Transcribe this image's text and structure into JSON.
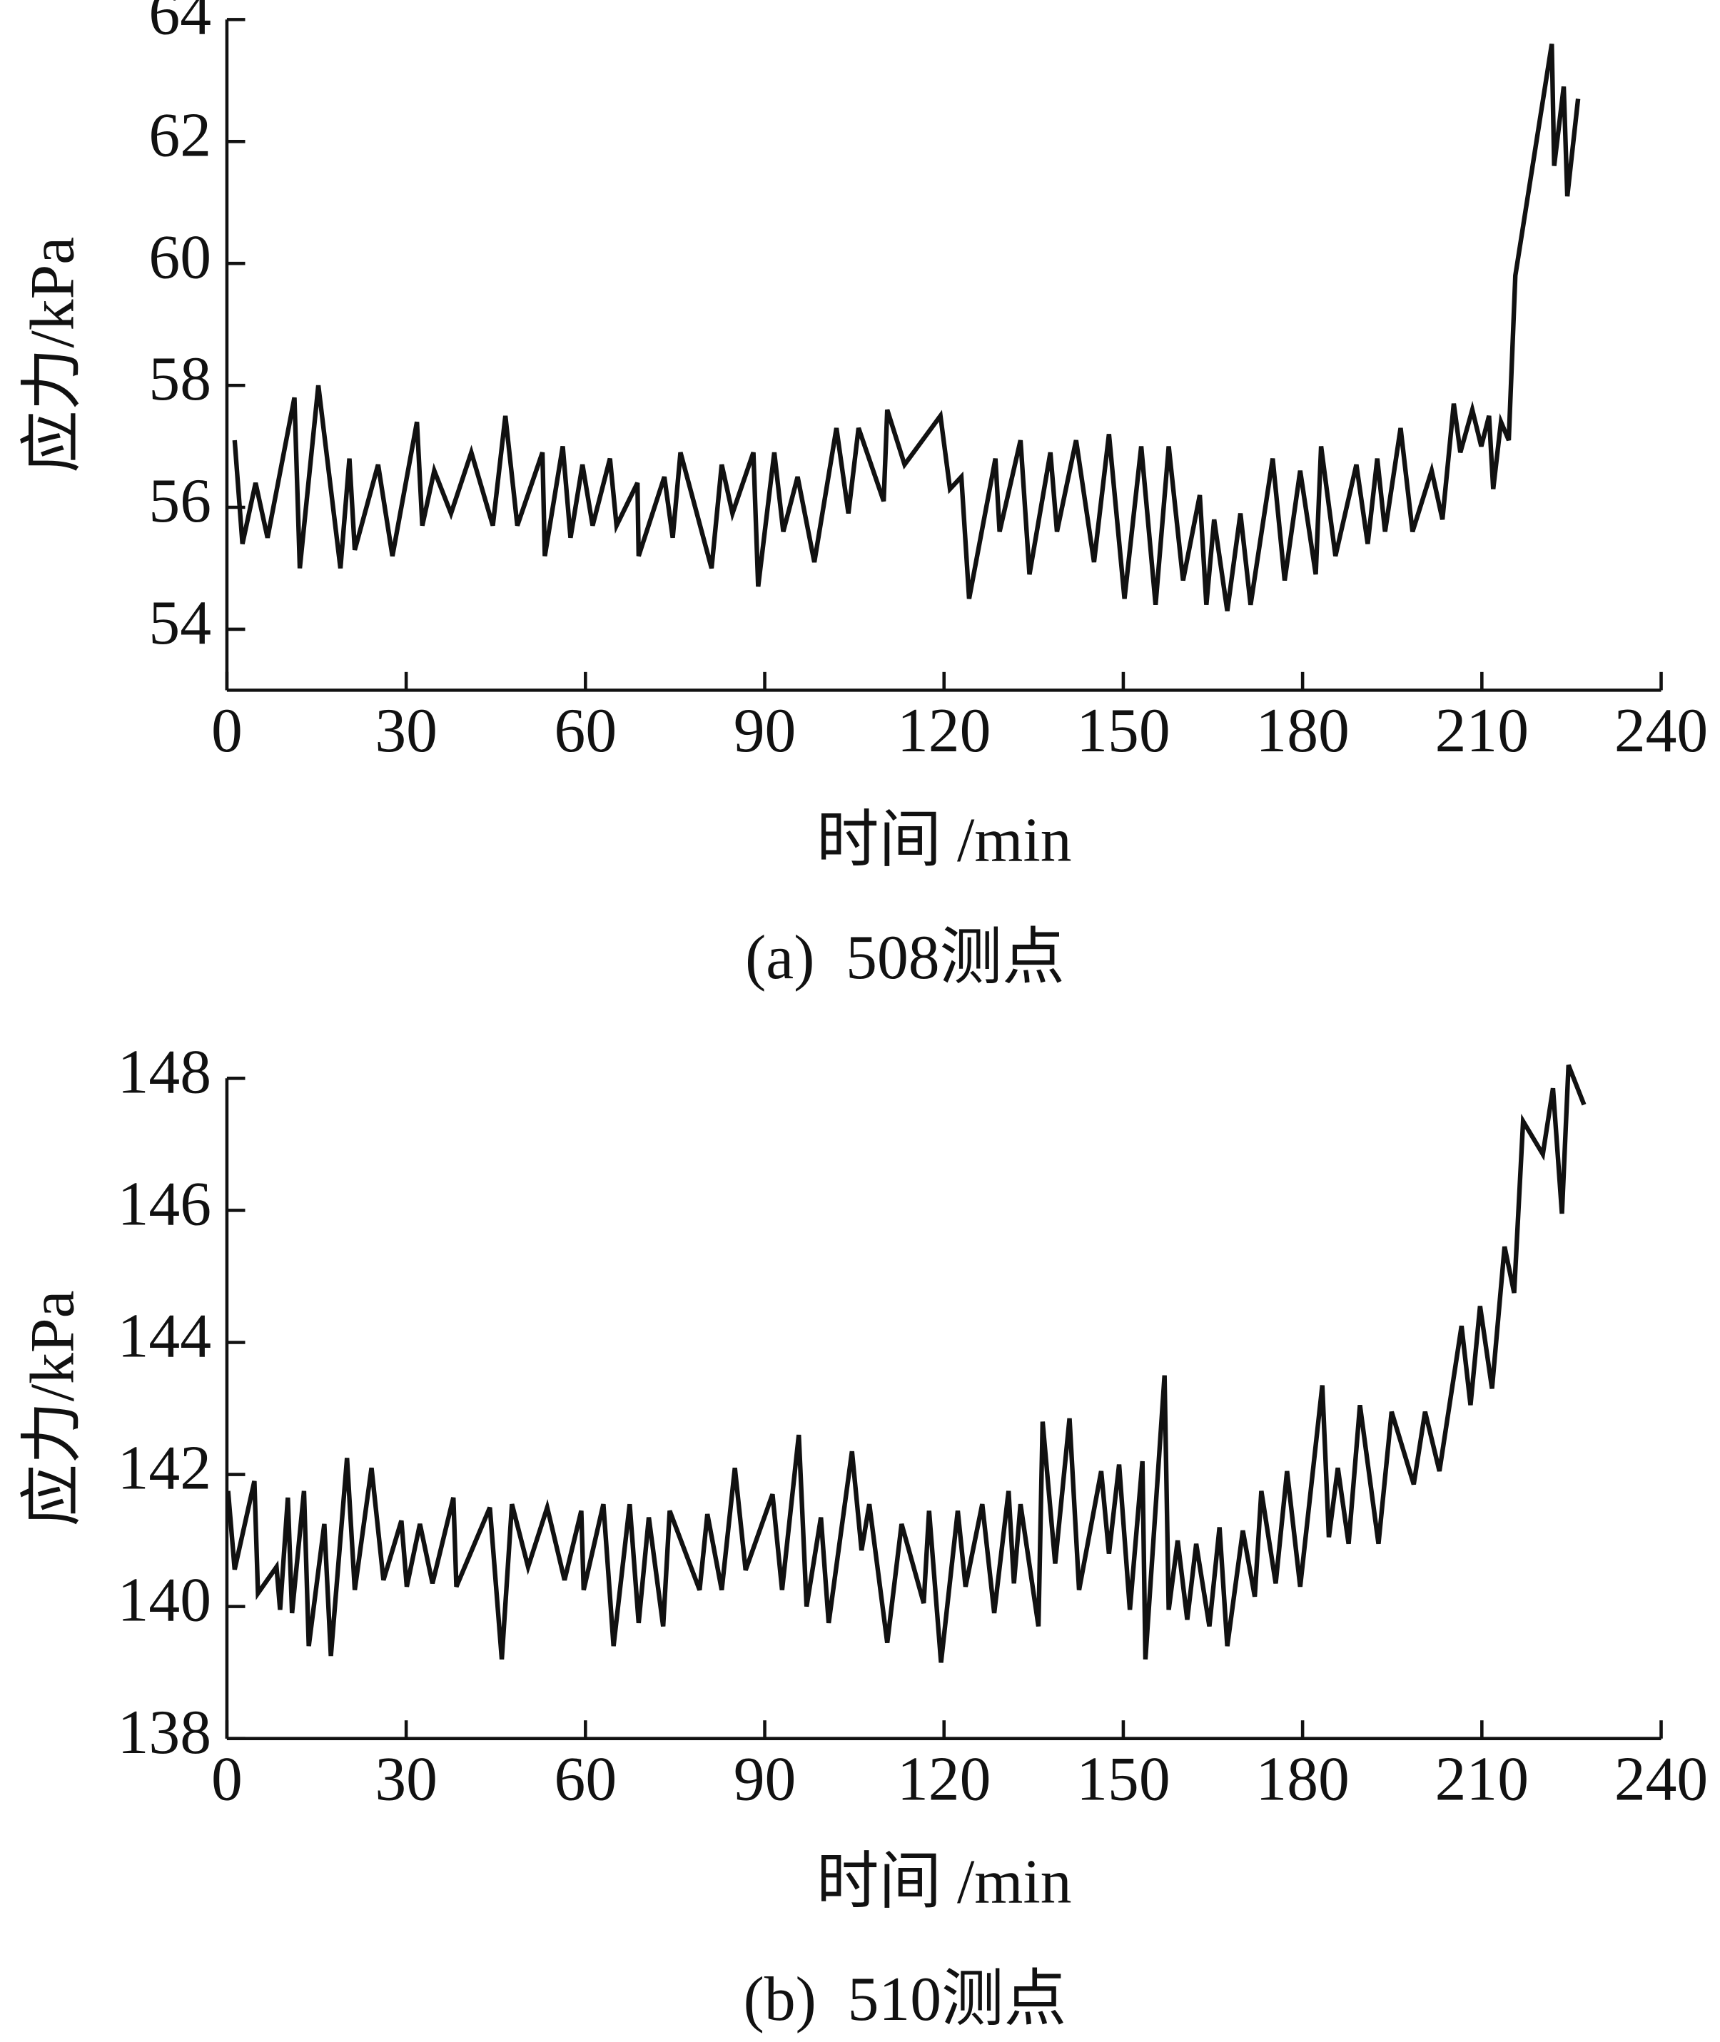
{
  "chart_data": [
    {
      "type": "line",
      "y_label": "应力/kPa",
      "x_label": "时间 /min",
      "caption": "(a)  508测点",
      "xlim": [
        0,
        240
      ],
      "xticks": [
        0,
        30,
        60,
        90,
        120,
        150,
        180,
        210,
        240
      ],
      "ylim": [
        53,
        64
      ],
      "yticks": [
        54,
        56,
        58,
        60,
        62,
        64
      ],
      "series": [
        {
          "color": "#111111",
          "x": [
            1.3,
            2.6,
            4.8,
            6.8,
            11.3,
            12.2,
            15.3,
            19.0,
            20.5,
            21.4,
            25.3,
            27.7,
            31.8,
            32.7,
            34.7,
            37.5,
            40.9,
            44.5,
            46.6,
            48.6,
            52.8,
            53.2,
            56.2,
            57.5,
            59.5,
            61.2,
            64.1,
            65.2,
            68.7,
            68.9,
            73.2,
            74.6,
            75.9,
            81.1,
            82.8,
            84.6,
            88.1,
            88.9,
            91.6,
            93.1,
            95.5,
            98.3,
            102.0,
            104.0,
            105.7,
            109.9,
            110.5,
            113.4,
            119.4,
            121.0,
            122.9,
            124.2,
            128.6,
            129.3,
            132.8,
            134.3,
            137.8,
            138.9,
            142.1,
            145.1,
            147.6,
            150.2,
            153.0,
            155.4,
            157.6,
            160.0,
            162.8,
            163.9,
            165.2,
            167.4,
            169.6,
            171.3,
            175.0,
            177.0,
            179.6,
            182.2,
            183.1,
            185.5,
            189.0,
            190.9,
            192.5,
            193.8,
            196.4,
            198.4,
            201.6,
            203.4,
            205.3,
            206.4,
            208.4,
            209.9,
            211.2,
            211.9,
            213.2,
            214.5,
            215.6,
            221.7,
            222.1,
            223.7,
            224.3,
            226.1
          ],
          "values": [
            57.1,
            55.4,
            56.4,
            55.5,
            57.8,
            55.0,
            58.0,
            55.0,
            56.8,
            55.3,
            56.7,
            55.2,
            57.4,
            55.7,
            56.6,
            55.9,
            56.9,
            55.7,
            57.5,
            55.7,
            56.9,
            55.2,
            57.0,
            55.5,
            56.7,
            55.7,
            56.8,
            55.7,
            56.4,
            55.2,
            56.5,
            55.5,
            56.9,
            55.0,
            56.7,
            55.9,
            56.9,
            54.7,
            56.9,
            55.6,
            56.5,
            55.1,
            57.3,
            55.9,
            57.3,
            56.1,
            57.6,
            56.7,
            57.5,
            56.3,
            56.5,
            54.5,
            56.8,
            55.6,
            57.1,
            54.9,
            56.9,
            55.6,
            57.1,
            55.1,
            57.2,
            54.5,
            57.0,
            54.4,
            57.0,
            54.8,
            56.2,
            54.4,
            55.8,
            54.3,
            55.9,
            54.4,
            56.8,
            54.8,
            56.6,
            54.9,
            57.0,
            55.2,
            56.7,
            55.4,
            56.8,
            55.6,
            57.3,
            55.6,
            56.6,
            55.8,
            57.7,
            56.9,
            57.6,
            57.0,
            57.5,
            56.3,
            57.4,
            57.1,
            59.8,
            63.6,
            61.6,
            62.9,
            61.1,
            62.7
          ]
        }
      ]
    },
    {
      "type": "line",
      "y_label": "应力/kPa",
      "x_label": "时间 /min",
      "caption": "(b)  510测点",
      "xlim": [
        0,
        240
      ],
      "xticks": [
        0,
        30,
        60,
        90,
        120,
        150,
        180,
        210,
        240
      ],
      "ylim": [
        138,
        148
      ],
      "yticks": [
        138,
        140,
        142,
        144,
        146,
        148
      ],
      "series": [
        {
          "color": "#111111",
          "x": [
            0.2,
            1.3,
            4.6,
            5.2,
            8.3,
            8.9,
            10.2,
            10.9,
            12.9,
            13.7,
            16.3,
            17.4,
            20.1,
            21.4,
            24.2,
            26.2,
            29.2,
            30.1,
            32.3,
            34.4,
            37.9,
            38.4,
            44.0,
            46.0,
            47.7,
            50.4,
            53.6,
            56.5,
            59.3,
            59.7,
            63.0,
            64.7,
            67.4,
            68.9,
            70.6,
            73.0,
            74.1,
            79.1,
            80.4,
            82.8,
            85.0,
            86.8,
            91.3,
            92.9,
            95.7,
            97.0,
            99.4,
            100.7,
            104.6,
            106.2,
            107.5,
            110.5,
            112.9,
            116.6,
            117.5,
            119.5,
            122.3,
            123.6,
            126.4,
            128.4,
            130.8,
            131.7,
            132.8,
            135.8,
            136.5,
            138.6,
            141.0,
            142.6,
            146.3,
            147.6,
            149.3,
            151.1,
            153.2,
            153.7,
            156.9,
            157.6,
            159.1,
            160.7,
            162.2,
            164.4,
            166.1,
            167.4,
            170.0,
            172.0,
            173.1,
            175.5,
            177.4,
            179.6,
            183.3,
            184.4,
            185.9,
            187.7,
            189.6,
            192.7,
            194.9,
            198.6,
            200.5,
            202.9,
            206.6,
            208.1,
            209.7,
            211.7,
            213.8,
            215.4,
            216.9,
            220.2,
            221.9,
            223.4,
            224.5,
            227.1
          ],
          "values": [
            141.75,
            140.56,
            141.9,
            140.2,
            140.6,
            139.95,
            141.65,
            139.9,
            141.75,
            139.4,
            141.25,
            139.25,
            142.25,
            140.25,
            142.1,
            140.4,
            141.3,
            140.3,
            141.25,
            140.35,
            141.65,
            140.3,
            141.5,
            139.2,
            141.55,
            140.6,
            141.5,
            140.4,
            141.45,
            140.25,
            141.55,
            139.4,
            141.55,
            139.75,
            141.35,
            139.7,
            141.45,
            140.25,
            141.4,
            140.25,
            142.1,
            140.55,
            141.7,
            140.25,
            142.6,
            140.0,
            141.35,
            139.75,
            142.35,
            140.85,
            141.55,
            139.45,
            141.25,
            140.05,
            141.45,
            139.15,
            141.45,
            140.3,
            141.55,
            139.9,
            141.75,
            140.35,
            141.55,
            139.7,
            142.8,
            140.65,
            142.85,
            140.25,
            142.05,
            140.8,
            142.15,
            139.95,
            142.2,
            139.2,
            143.5,
            139.95,
            141.0,
            139.8,
            140.95,
            139.7,
            141.2,
            139.4,
            141.15,
            140.15,
            141.75,
            140.35,
            142.05,
            140.3,
            143.35,
            141.05,
            142.1,
            140.95,
            143.05,
            140.95,
            142.95,
            141.85,
            142.95,
            142.05,
            144.25,
            143.05,
            144.55,
            143.3,
            145.45,
            144.75,
            147.35,
            146.85,
            147.85,
            145.95,
            148.2,
            147.6
          ]
        }
      ]
    }
  ]
}
